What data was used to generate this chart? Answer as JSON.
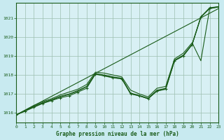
{
  "title": "Graphe pression niveau de la mer (hPa)",
  "bg_color": "#c8eaf0",
  "plot_bg_color": "#d8f0f4",
  "line_color": "#1a5c1a",
  "grid_color": "#9dbfb0",
  "xlim": [
    0,
    23
  ],
  "ylim": [
    1015.5,
    1021.8
  ],
  "yticks": [
    1016,
    1017,
    1018,
    1019,
    1020,
    1021
  ],
  "xticks": [
    0,
    1,
    2,
    3,
    4,
    5,
    6,
    7,
    8,
    9,
    10,
    11,
    12,
    13,
    14,
    15,
    16,
    17,
    18,
    19,
    20,
    21,
    22,
    23
  ],
  "line_straight": {
    "x": [
      0,
      23
    ],
    "y": [
      1015.9,
      1021.5
    ]
  },
  "line_jagged": {
    "x": [
      0,
      1,
      2,
      3,
      4,
      5,
      6,
      7,
      8,
      9,
      10,
      11,
      12,
      13,
      14,
      15,
      16,
      17,
      18,
      19,
      20,
      21,
      22,
      23
    ],
    "y": [
      1015.9,
      1016.1,
      1016.3,
      1016.5,
      1016.65,
      1016.8,
      1016.9,
      1017.1,
      1017.3,
      1018.05,
      1017.95,
      1017.85,
      1017.8,
      1017.0,
      1016.9,
      1016.75,
      1017.15,
      1017.25,
      1018.75,
      1019.0,
      1019.6,
      1021.05,
      1021.55,
      1021.6
    ]
  },
  "line_upper": {
    "x": [
      0,
      1,
      2,
      3,
      4,
      5,
      6,
      7,
      8,
      9,
      10,
      11,
      12,
      13,
      14,
      15,
      16,
      17,
      18,
      19,
      20,
      21,
      22,
      23
    ],
    "y": [
      1015.9,
      1016.15,
      1016.4,
      1016.6,
      1016.75,
      1016.95,
      1017.1,
      1017.25,
      1017.5,
      1018.15,
      1018.1,
      1018.0,
      1017.9,
      1017.2,
      1017.0,
      1016.85,
      1017.3,
      1017.4,
      1018.85,
      1019.15,
      1019.7,
      1018.75,
      1021.5,
      1021.6
    ]
  },
  "line_cluster1": {
    "x": [
      0,
      1,
      2,
      3,
      4,
      5,
      6,
      7,
      8,
      9,
      10,
      11,
      12,
      13,
      14,
      15,
      16,
      17,
      18,
      19,
      20,
      21,
      22,
      23
    ],
    "y": [
      1015.9,
      1016.12,
      1016.35,
      1016.55,
      1016.7,
      1016.88,
      1017.0,
      1017.18,
      1017.4,
      1018.08,
      1018.0,
      1017.9,
      1017.83,
      1017.05,
      1016.92,
      1016.78,
      1017.2,
      1017.3,
      1018.78,
      1019.05,
      1019.62,
      1021.08,
      1021.52,
      1021.6
    ]
  },
  "line_cluster2": {
    "x": [
      0,
      1,
      2,
      3,
      4,
      5,
      6,
      7,
      8,
      9,
      10,
      11,
      12,
      13,
      14,
      15,
      16,
      17,
      18,
      19,
      20,
      21,
      22,
      23
    ],
    "y": [
      1015.9,
      1016.1,
      1016.32,
      1016.52,
      1016.68,
      1016.85,
      1016.97,
      1017.15,
      1017.38,
      1018.05,
      1017.97,
      1017.87,
      1017.8,
      1017.02,
      1016.9,
      1016.75,
      1017.17,
      1017.27,
      1018.76,
      1019.02,
      1019.6,
      1021.05,
      1021.5,
      1021.58
    ]
  },
  "marker_x": [
    0,
    1,
    2,
    3,
    4,
    5,
    6,
    7,
    8,
    9,
    10,
    11,
    12,
    13,
    14,
    15,
    16,
    17,
    18,
    19,
    20,
    21,
    22,
    23
  ],
  "marker_y": [
    1015.9,
    1016.1,
    1016.3,
    1016.5,
    1016.65,
    1016.8,
    1016.9,
    1017.1,
    1017.3,
    1018.05,
    1017.95,
    1017.85,
    1017.8,
    1017.0,
    1016.9,
    1016.75,
    1017.15,
    1017.25,
    1018.75,
    1019.0,
    1019.6,
    1021.05,
    1021.55,
    1021.6
  ]
}
